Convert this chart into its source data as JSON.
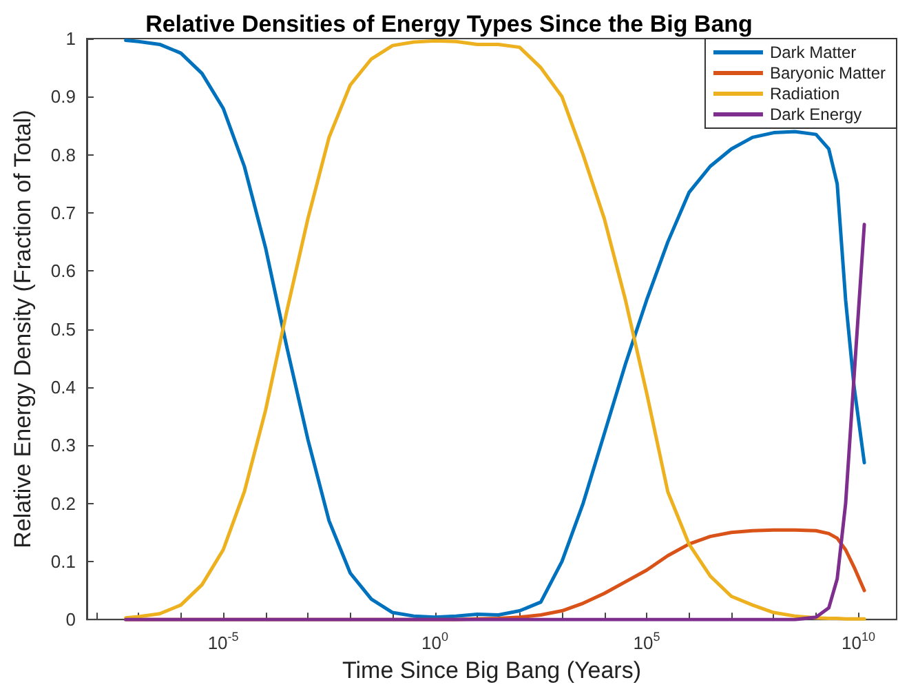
{
  "chart_data": {
    "type": "line",
    "title": "Relative Densities of Energy Types Since the Big Bang",
    "xlabel": "Time Since Big Bang (Years)",
    "ylabel": "Relative Energy Density (Fraction of Total)",
    "log": "x",
    "grid": false,
    "legend": "top right",
    "marker": "none",
    "line_style": "solid",
    "xlim": [
      6e-09,
      80000000000.0
    ],
    "ylim": [
      0,
      1
    ],
    "xticks": [
      {
        "value": 1e-08,
        "label": null
      },
      {
        "value": 1e-07,
        "label": null
      },
      {
        "value": 1e-06,
        "label": null
      },
      {
        "value": 1e-05,
        "label": "10$^{-5}$"
      },
      {
        "value": 0.0001,
        "label": null
      },
      {
        "value": 0.001,
        "label": null
      },
      {
        "value": 0.01,
        "label": null
      },
      {
        "value": 0.1,
        "label": null
      },
      {
        "value": 1,
        "label": "10$^{0}$"
      },
      {
        "value": 10,
        "label": null
      },
      {
        "value": 100,
        "label": null
      },
      {
        "value": 1000,
        "label": null
      },
      {
        "value": 10000,
        "label": null
      },
      {
        "value": 100000,
        "label": "10$^{5}$"
      },
      {
        "value": 1000000.0,
        "label": null
      },
      {
        "value": 10000000.0,
        "label": null
      },
      {
        "value": 100000000.0,
        "label": null
      },
      {
        "value": 1000000000.0,
        "label": null
      },
      {
        "value": 10000000000.0,
        "label": "10$^{10}$"
      }
    ],
    "yticks": [
      0,
      0.1,
      0.2,
      0.3,
      0.4,
      0.5,
      0.6,
      0.7,
      0.8,
      0.9,
      1
    ],
    "x": [
      5e-08,
      1e-07,
      3.16e-07,
      1e-06,
      3.16e-06,
      1e-05,
      3.16e-05,
      0.0001,
      0.000316,
      0.001,
      0.00316,
      0.01,
      0.0316,
      0.1,
      0.316,
      1,
      3.16,
      10,
      31.6,
      100,
      316,
      1000,
      3160,
      10000.0,
      31600.0,
      100000.0,
      316000.0,
      1000000.0,
      3160000.0,
      10000000.0,
      31600000.0,
      100000000.0,
      316000000.0,
      1000000000.0,
      2000000000.0,
      3160000000.0,
      5000000000.0,
      7940000000.0,
      13800000000.0
    ],
    "series": [
      {
        "name": "Dark Matter",
        "color": "#0072bd",
        "values": [
          0.997,
          0.995,
          0.99,
          0.975,
          0.94,
          0.88,
          0.78,
          0.64,
          0.47,
          0.31,
          0.17,
          0.08,
          0.035,
          0.012,
          0.006,
          0.004,
          0.006,
          0.009,
          0.008,
          0.015,
          0.03,
          0.1,
          0.2,
          0.32,
          0.44,
          0.55,
          0.65,
          0.735,
          0.78,
          0.81,
          0.83,
          0.838,
          0.84,
          0.835,
          0.81,
          0.75,
          0.55,
          0.4,
          0.27
        ]
      },
      {
        "name": "Baryonic Matter",
        "color": "#d95319",
        "values": [
          0,
          0,
          0,
          0,
          0,
          0,
          0,
          0,
          0,
          0,
          0,
          0,
          0,
          0,
          0,
          0,
          0,
          0.001,
          0.002,
          0.004,
          0.008,
          0.015,
          0.028,
          0.045,
          0.065,
          0.085,
          0.11,
          0.13,
          0.143,
          0.15,
          0.153,
          0.154,
          0.154,
          0.153,
          0.148,
          0.14,
          0.12,
          0.09,
          0.05
        ]
      },
      {
        "name": "Radiation",
        "color": "#edb120",
        "values": [
          0.003,
          0.005,
          0.01,
          0.025,
          0.06,
          0.12,
          0.22,
          0.36,
          0.53,
          0.69,
          0.83,
          0.92,
          0.965,
          0.988,
          0.994,
          0.996,
          0.995,
          0.99,
          0.99,
          0.985,
          0.95,
          0.9,
          0.8,
          0.69,
          0.55,
          0.39,
          0.22,
          0.13,
          0.075,
          0.04,
          0.025,
          0.012,
          0.006,
          0.003,
          0.002,
          0.002,
          0.001,
          0.001,
          0.001
        ]
      },
      {
        "name": "Dark Energy",
        "color": "#7e2f8e",
        "values": [
          0,
          0,
          0,
          0,
          0,
          0,
          0,
          0,
          0,
          0,
          0,
          0,
          0,
          0,
          0,
          0,
          0,
          0,
          0,
          0,
          0,
          0,
          0,
          0,
          0,
          0,
          0,
          0,
          0,
          0,
          0,
          0,
          0,
          0.004,
          0.02,
          0.07,
          0.2,
          0.42,
          0.68
        ]
      }
    ]
  }
}
